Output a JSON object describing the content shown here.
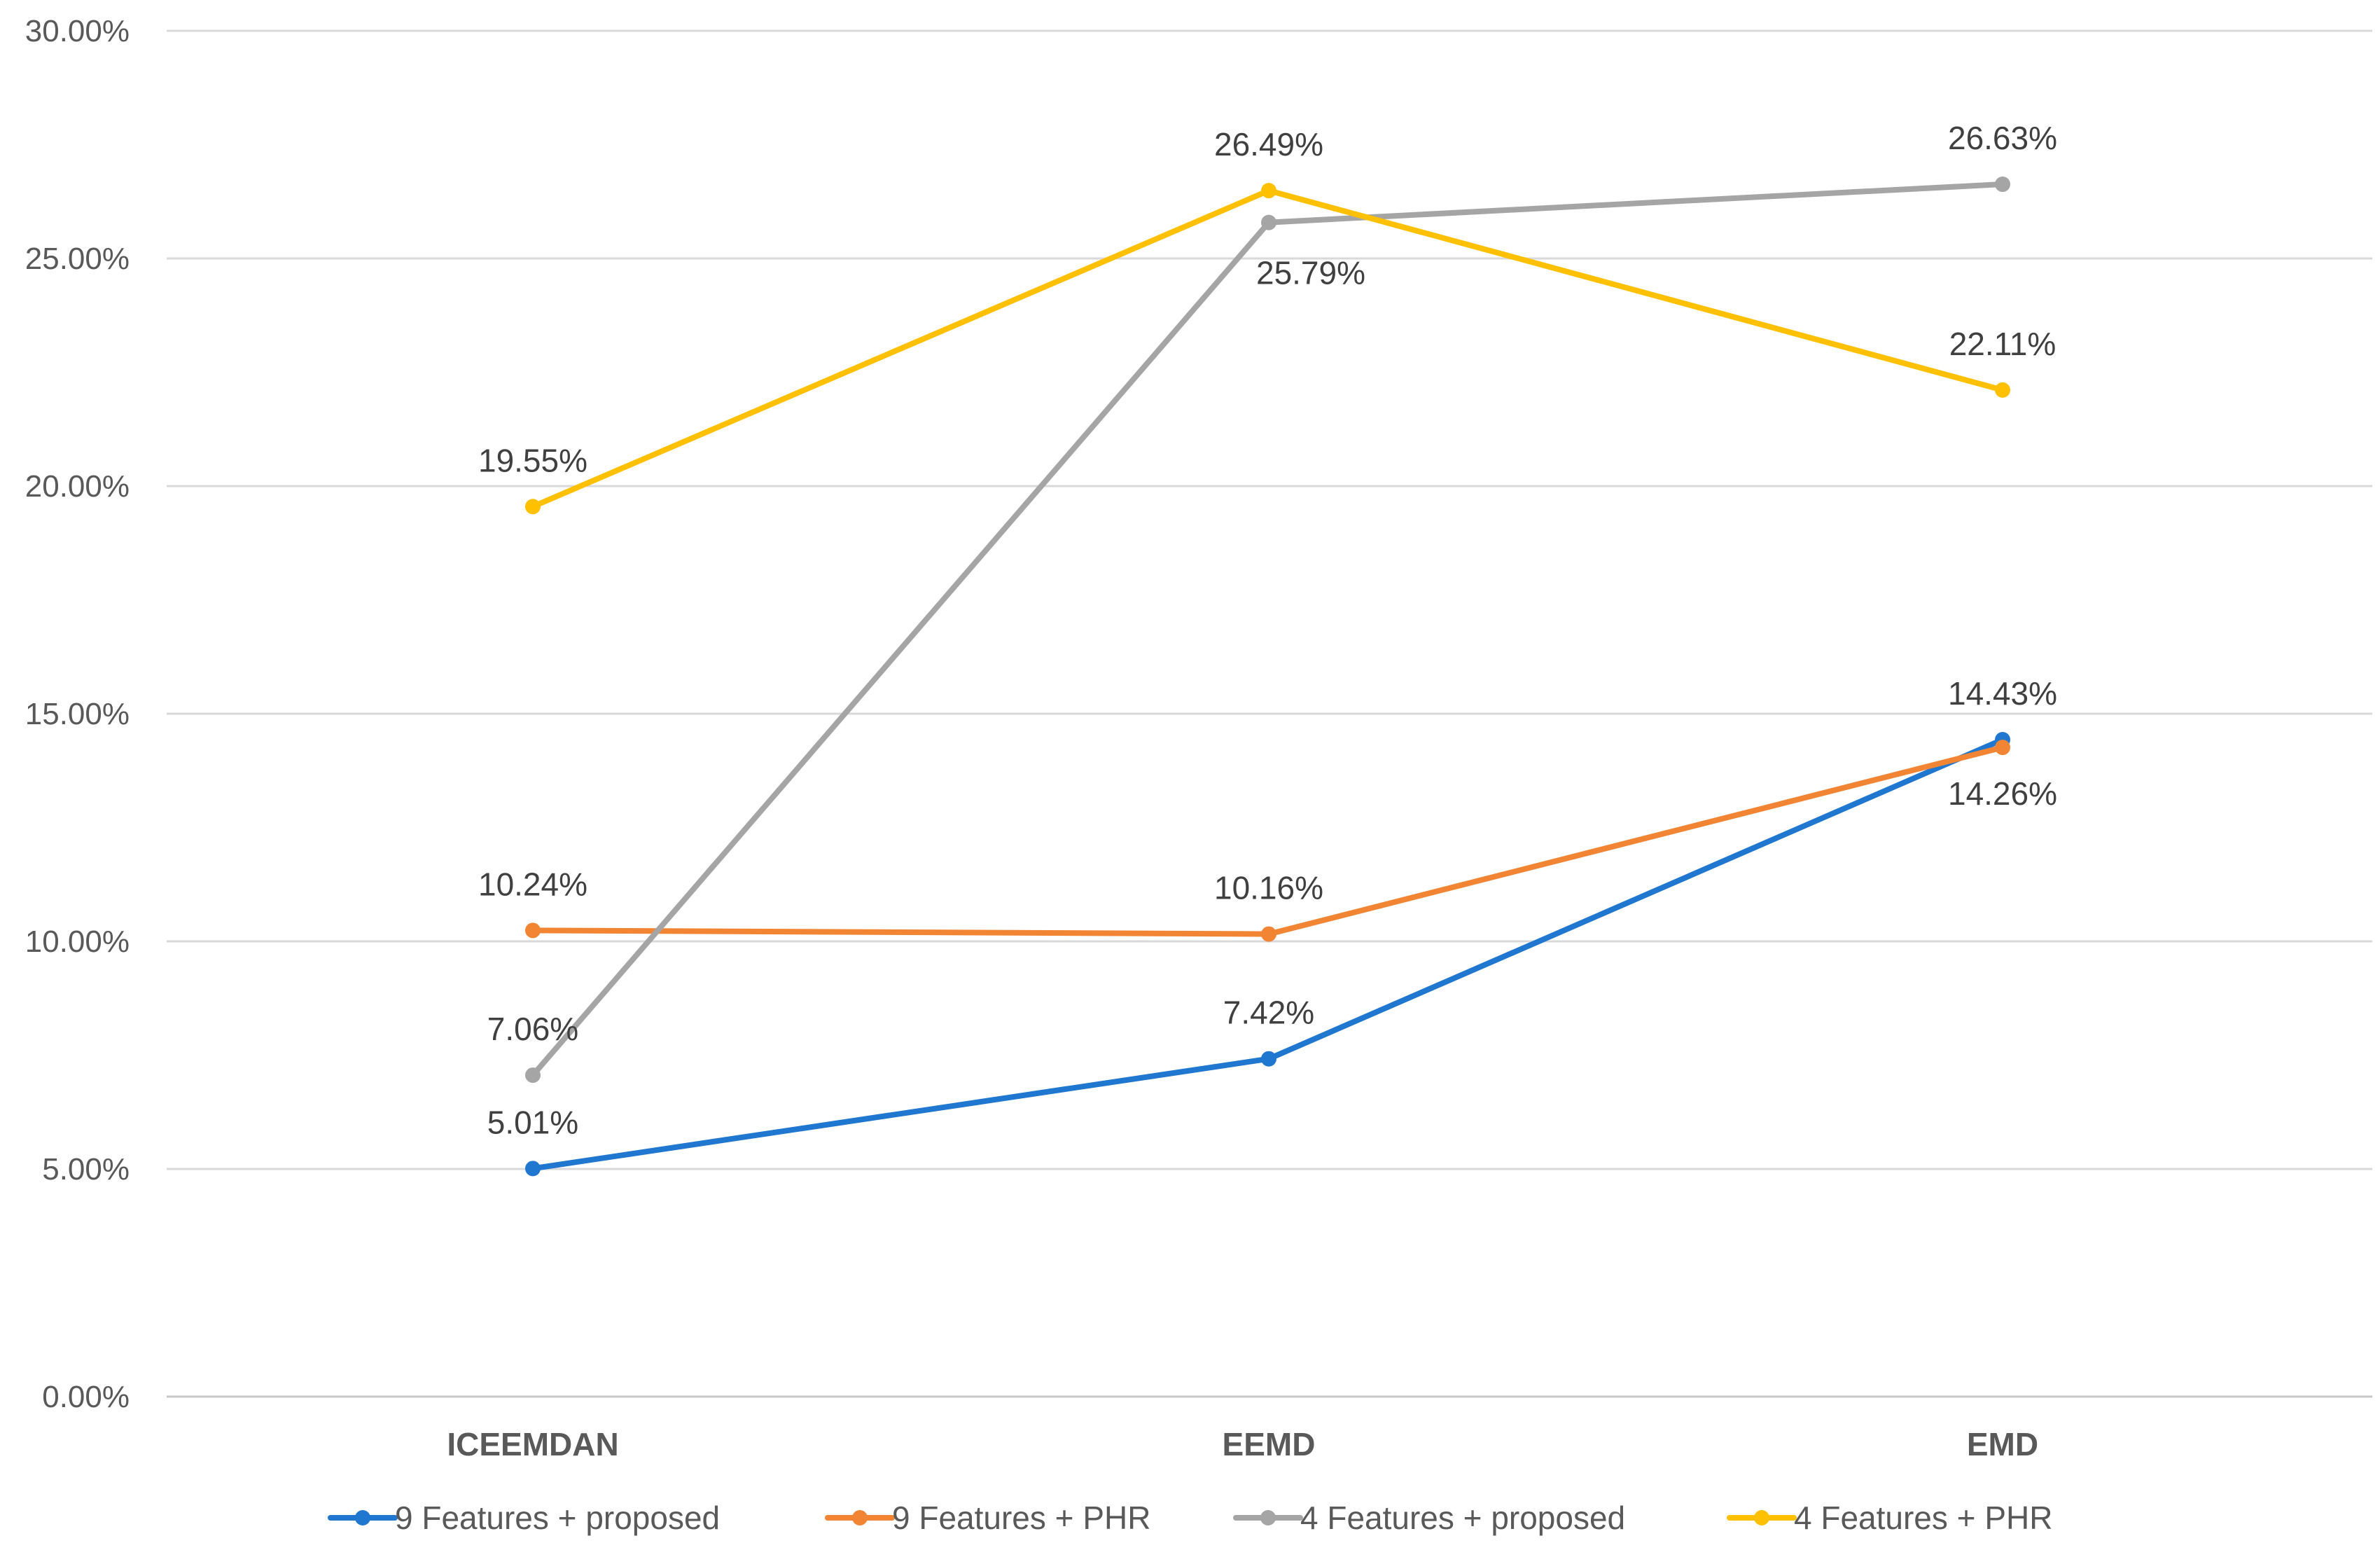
{
  "chart_data": {
    "type": "line",
    "categories": [
      "ICEEMDAN",
      "EEMD",
      "EMD"
    ],
    "ylim": [
      0,
      30
    ],
    "ytick_step": 5,
    "ytick_labels": [
      "0.00%",
      "5.00%",
      "10.00%",
      "15.00%",
      "20.00%",
      "25.00%",
      "30.00%"
    ],
    "grid": true,
    "legend_position": "bottom",
    "series": [
      {
        "name": "9 Features + proposed",
        "color": "#1F77D0",
        "values": [
          5.01,
          7.42,
          14.43
        ],
        "labels": [
          "5.01%",
          "7.42%",
          "14.43%"
        ],
        "label_pos": [
          "above",
          "above",
          "above"
        ]
      },
      {
        "name": "9 Features + PHR",
        "color": "#F28533",
        "values": [
          10.24,
          10.16,
          14.26
        ],
        "labels": [
          "10.24%",
          "10.16%",
          "14.26%"
        ],
        "label_pos": [
          "above",
          "above",
          "below"
        ]
      },
      {
        "name": "4 Features + proposed",
        "color": "#A5A5A5",
        "values": [
          7.06,
          25.79,
          26.63
        ],
        "labels": [
          "7.06%",
          "25.79%",
          "26.63%"
        ],
        "label_pos": [
          "above",
          "below-right",
          "above"
        ]
      },
      {
        "name": "4 Features + PHR",
        "color": "#FFC000",
        "values": [
          19.55,
          26.49,
          22.11
        ],
        "labels": [
          "19.55%",
          "26.49%",
          "22.11%"
        ],
        "label_pos": [
          "above",
          "above",
          "above"
        ]
      }
    ]
  }
}
